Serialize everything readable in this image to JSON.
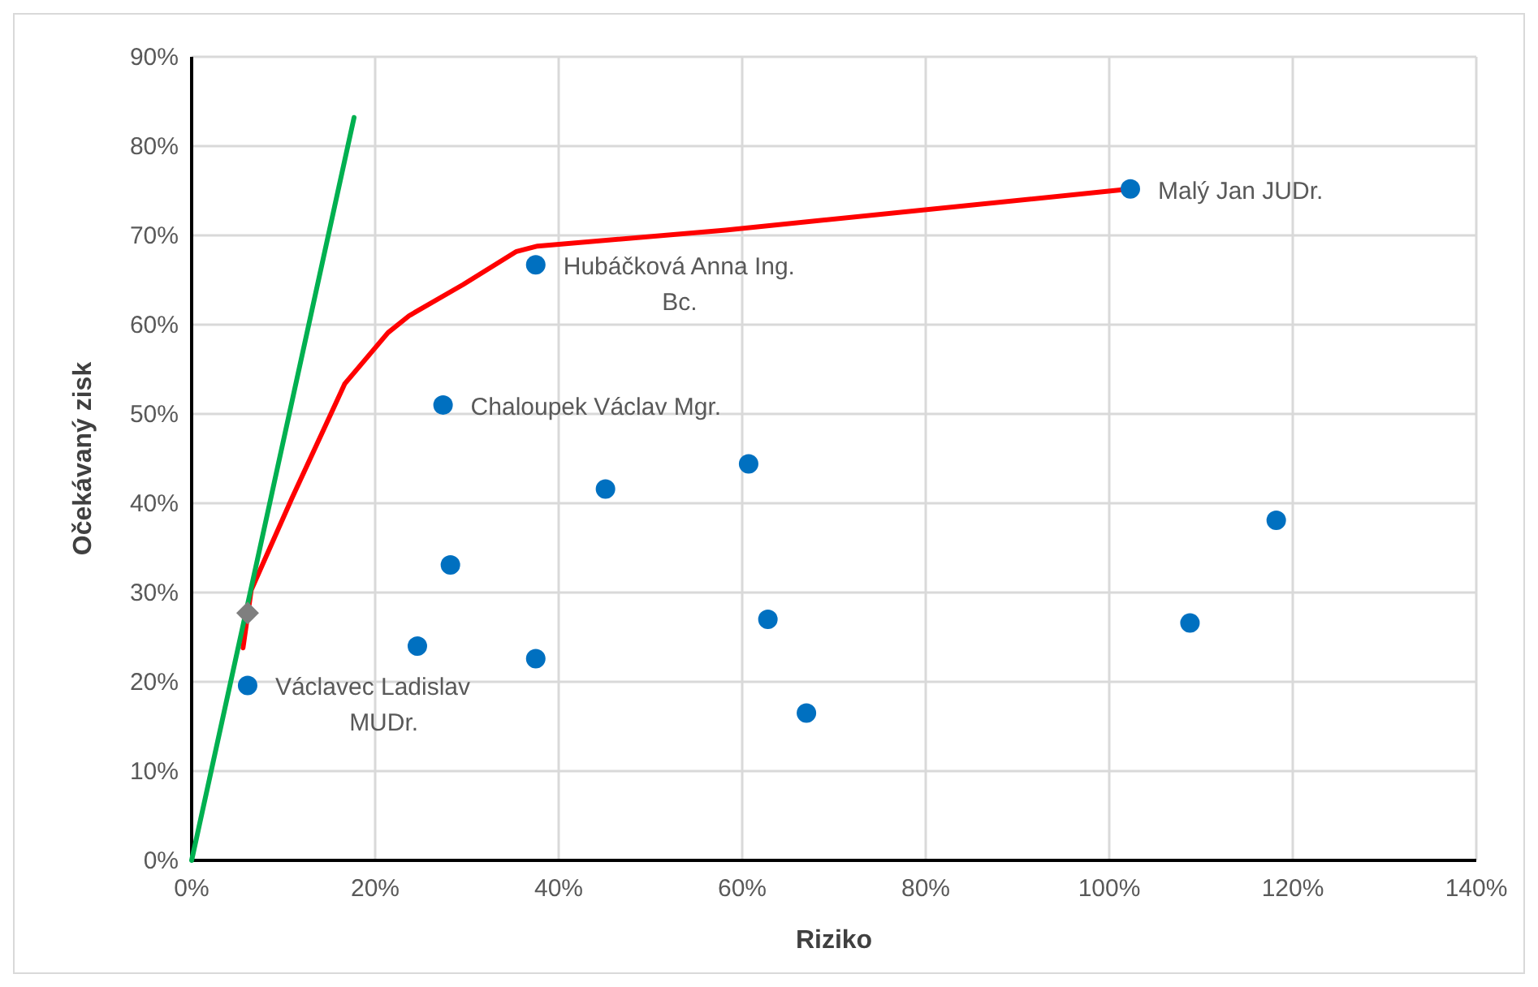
{
  "chart_data": {
    "type": "scatter",
    "xlabel": "Riziko",
    "ylabel": "Očekávaný zisk",
    "grid": true,
    "xlim": [
      0,
      140
    ],
    "ylim": [
      0,
      90
    ],
    "xticks": [
      {
        "value": 0,
        "label": "0%"
      },
      {
        "value": 20,
        "label": "20%"
      },
      {
        "value": 40,
        "label": "40%"
      },
      {
        "value": 60,
        "label": "60%"
      },
      {
        "value": 80,
        "label": "80%"
      },
      {
        "value": 100,
        "label": "100%"
      },
      {
        "value": 120,
        "label": "120%"
      },
      {
        "value": 140,
        "label": "140%"
      }
    ],
    "yticks": [
      {
        "value": 0,
        "label": "0%"
      },
      {
        "value": 10,
        "label": "10%"
      },
      {
        "value": 20,
        "label": "20%"
      },
      {
        "value": 30,
        "label": "30%"
      },
      {
        "value": 40,
        "label": "40%"
      },
      {
        "value": 50,
        "label": "50%"
      },
      {
        "value": 60,
        "label": "60%"
      },
      {
        "value": 70,
        "label": "70%"
      },
      {
        "value": 80,
        "label": "80%"
      },
      {
        "value": 90,
        "label": "90%"
      }
    ],
    "series": [
      {
        "type": "line",
        "color": "#ff0000",
        "marker": "none",
        "x": [
          5.6,
          6.5,
          10.9,
          16.7,
          21.4,
          23.7,
          29.6,
          35.4,
          37.7,
          58.2,
          102.3
        ],
        "values": [
          23.8,
          30.3,
          40.5,
          53.4,
          59.1,
          61.0,
          64.5,
          68.2,
          68.8,
          70.6,
          75.2
        ]
      },
      {
        "type": "line",
        "color": "#00b050",
        "marker": "none",
        "x": [
          0,
          17.7
        ],
        "values": [
          0,
          83.2
        ]
      },
      {
        "color": "#0070c0",
        "marker": "circle",
        "x": [
          6.1,
          24.6,
          27.4,
          28.2,
          37.5,
          37.5,
          45.1,
          60.7,
          62.8,
          67.0,
          102.3,
          108.8,
          118.2
        ],
        "values": [
          19.6,
          24.0,
          51.0,
          33.1,
          66.7,
          22.6,
          41.6,
          44.4,
          27.0,
          16.5,
          75.2,
          26.6,
          38.1
        ]
      },
      {
        "color": "#7f7f7f",
        "marker": "diamond",
        "x": [
          6.1
        ],
        "values": [
          27.7
        ]
      }
    ],
    "annotations": [
      {
        "text": "Václavec Ladislav\nMUDr.",
        "x": 6.1,
        "y": 19.6
      },
      {
        "text": "Chaloupek Václav Mgr.",
        "x": 27.4,
        "y": 51.0
      },
      {
        "text": "Hubáčková Anna Ing.\nBc.",
        "x": 37.5,
        "y": 66.7
      },
      {
        "text": "Malý Jan JUDr.",
        "x": 102.3,
        "y": 75.2
      }
    ]
  }
}
